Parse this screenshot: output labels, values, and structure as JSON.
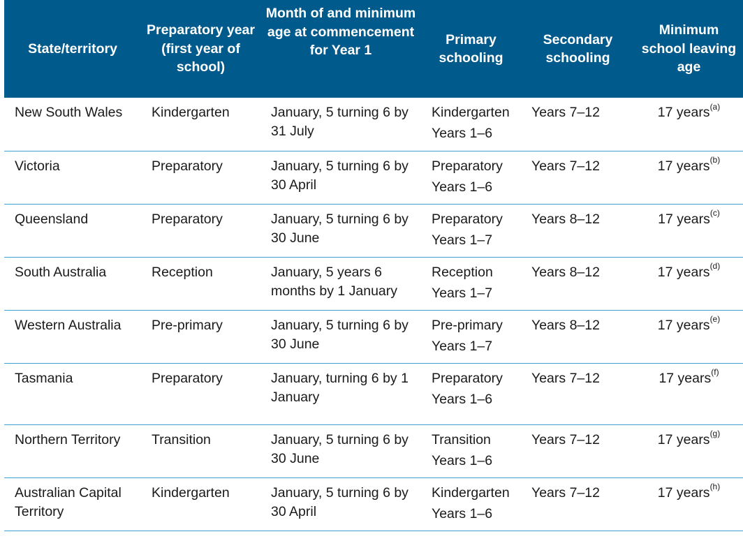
{
  "headers": [
    "State/territory",
    "Preparatory year (first year of school)",
    "Month of and minimum age at commencement for Year 1",
    "Primary schooling",
    "Secondary schooling",
    "Minimum school leaving age"
  ],
  "rows": [
    {
      "state": "New South Wales",
      "prep": "Kindergarten",
      "commence": "January, 5 turning 6 by 31 July",
      "primary_prep": "Kindergarten",
      "primary_years": "Years 1–6",
      "secondary": "Years 7–12",
      "age": "17 years",
      "note": "(a)"
    },
    {
      "state": "Victoria",
      "prep": "Preparatory",
      "commence": "January, 5 turning 6 by 30 April",
      "primary_prep": "Preparatory",
      "primary_years": "Years 1–6",
      "secondary": "Years 7–12",
      "age": "17 years",
      "note": "(b)"
    },
    {
      "state": "Queensland",
      "prep": "Preparatory",
      "commence": "January, 5 turning 6 by 30 June",
      "primary_prep": "Preparatory",
      "primary_years": "Years 1–7",
      "secondary": "Years 8–12",
      "age": "17 years",
      "note": "(c)"
    },
    {
      "state": "South Australia",
      "prep": "Reception",
      "commence": "January, 5 years 6 months by 1 January",
      "primary_prep": "Reception",
      "primary_years": "Years 1–7",
      "secondary": "Years 8–12",
      "age": "17 years",
      "note": "(d)"
    },
    {
      "state": "Western Australia",
      "prep": "Pre-primary",
      "commence": "January, 5 turning 6 by 30 June",
      "primary_prep": "Pre-primary",
      "primary_years": "Years 1–7",
      "secondary": "Years 8–12",
      "age": "17 years",
      "note": "(e)"
    },
    {
      "state": "Tasmania",
      "prep": "Preparatory",
      "commence": "January, turning 6 by 1 January",
      "primary_prep": "Preparatory",
      "primary_years": "Years 1–6",
      "secondary": "Years 7–12",
      "age": "17 years",
      "note": "(f)"
    },
    {
      "state": "Northern Territory",
      "prep": "Transition",
      "commence": "January, 5 turning 6 by 30 June",
      "primary_prep": "Transition",
      "primary_years": "Years 1–6",
      "secondary": "Years 7–12",
      "age": "17 years",
      "note": "(g)"
    },
    {
      "state": "Australian Capital Territory",
      "prep": "Kindergarten",
      "commence": "January, 5 turning 6 by 30 April",
      "primary_prep": "Kindergarten",
      "primary_years": "Years 1–6",
      "secondary": "Years 7–12",
      "age": "17 years",
      "note": "(h)"
    }
  ]
}
